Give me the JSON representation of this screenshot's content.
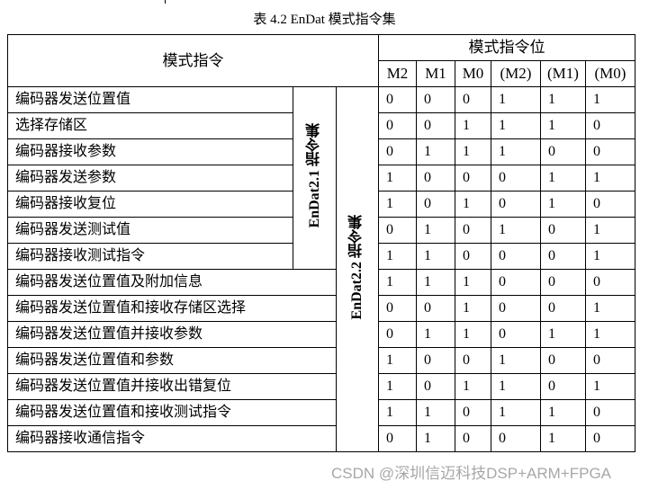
{
  "caption": "表 4.2 EnDat 模式指令集",
  "header": {
    "command": "模式指令",
    "bits_group": "模式指令位",
    "bits": [
      "M2",
      "M1",
      "M0",
      "(M2)",
      "(M1)",
      "(M0)"
    ]
  },
  "groups": {
    "endat21": "EnDat2.1 指令集",
    "endat22": "EnDat2.2 指令集"
  },
  "rows": [
    {
      "name": "编码器发送位置值",
      "bits": [
        "0",
        "0",
        "0",
        "1",
        "1",
        "1"
      ]
    },
    {
      "name": "选择存储区",
      "bits": [
        "0",
        "0",
        "1",
        "1",
        "1",
        "0"
      ]
    },
    {
      "name": "编码器接收参数",
      "bits": [
        "0",
        "1",
        "1",
        "1",
        "0",
        "0"
      ]
    },
    {
      "name": "编码器发送参数",
      "bits": [
        "1",
        "0",
        "0",
        "0",
        "1",
        "1"
      ]
    },
    {
      "name": "编码器接收复位",
      "bits": [
        "1",
        "0",
        "1",
        "0",
        "1",
        "0"
      ]
    },
    {
      "name": "编码器发送测试值",
      "bits": [
        "0",
        "1",
        "0",
        "1",
        "0",
        "1"
      ]
    },
    {
      "name": "编码器接收测试指令",
      "bits": [
        "1",
        "1",
        "0",
        "0",
        "0",
        "1"
      ]
    },
    {
      "name": "编码器发送位置值及附加信息",
      "bits": [
        "1",
        "1",
        "1",
        "0",
        "0",
        "0"
      ]
    },
    {
      "name": "编码器发送位置值和接收存储区选择",
      "bits": [
        "0",
        "0",
        "1",
        "0",
        "0",
        "1"
      ]
    },
    {
      "name": "编码器发送位置值并接收参数",
      "bits": [
        "0",
        "1",
        "1",
        "0",
        "1",
        "1"
      ]
    },
    {
      "name": "编码器发送位置值和参数",
      "bits": [
        "1",
        "0",
        "0",
        "1",
        "0",
        "0"
      ]
    },
    {
      "name": "编码器发送位置值并接收出错复位",
      "bits": [
        "1",
        "0",
        "1",
        "1",
        "0",
        "1"
      ]
    },
    {
      "name": "编码器发送位置值和接收测试指令",
      "bits": [
        "1",
        "1",
        "0",
        "1",
        "1",
        "0"
      ]
    },
    {
      "name": "编码器接收通信指令",
      "bits": [
        "0",
        "1",
        "0",
        "0",
        "1",
        "0"
      ]
    }
  ],
  "watermark": "CSDN @深圳信迈科技DSP+ARM+FPGA"
}
